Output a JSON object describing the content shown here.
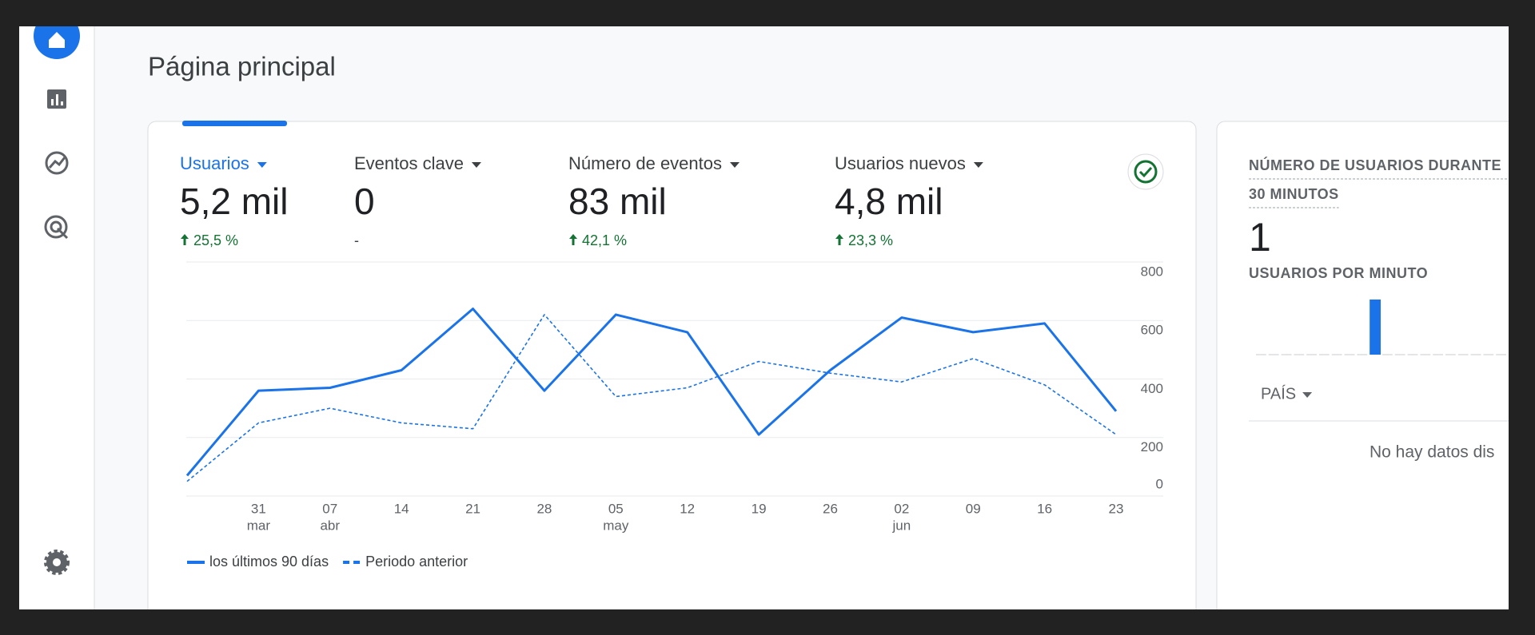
{
  "header": {
    "title": "Página principal"
  },
  "metrics": [
    {
      "label": "Usuarios",
      "value": "5,2 mil",
      "change": "25,5 %",
      "trend": "up",
      "selected": true
    },
    {
      "label": "Eventos clave",
      "value": "0",
      "change": "-"
    },
    {
      "label": "Número de eventos",
      "value": "83 mil",
      "change": "42,1 %",
      "trend": "up"
    },
    {
      "label": "Usuarios nuevos",
      "value": "4,8 mil",
      "change": "23,3 %",
      "trend": "up"
    }
  ],
  "chart_data": {
    "type": "line",
    "categories": [
      null,
      "31",
      "07",
      "14",
      "21",
      "28",
      "05",
      "12",
      "19",
      "26",
      "02",
      "09",
      "16",
      "23"
    ],
    "months": [
      null,
      "mar",
      "abr",
      null,
      null,
      null,
      "may",
      null,
      null,
      null,
      "jun",
      null,
      null,
      null
    ],
    "series": [
      {
        "name": "los últimos 90 días",
        "color": "#1a73e8",
        "style": "solid",
        "values": [
          70,
          360,
          370,
          430,
          640,
          360,
          620,
          560,
          210,
          430,
          610,
          560,
          590,
          290
        ]
      },
      {
        "name": "Periodo anterior",
        "color": "#1a73e8",
        "style": "dashed",
        "values": [
          50,
          250,
          300,
          250,
          230,
          620,
          340,
          370,
          460,
          420,
          390,
          470,
          380,
          210
        ]
      }
    ],
    "ylim": [
      0,
      800
    ],
    "yticks": [
      0,
      200,
      400,
      600,
      800
    ],
    "grid": true,
    "legend": "bottom-left"
  },
  "realtime": {
    "title": "NÚMERO DE USUARIOS DURANTE",
    "subtitle": "30 MINUTOS",
    "value": "1",
    "bars_title": "USUARIOS POR MINUTO",
    "bar_color": "#1a73e8",
    "bars": [
      0,
      0,
      0,
      0,
      0,
      0,
      0,
      0,
      0,
      1,
      0,
      0,
      0,
      0,
      0,
      0,
      0,
      0,
      0,
      0
    ],
    "dimension": "PAÍS",
    "empty": "No hay datos dis"
  }
}
